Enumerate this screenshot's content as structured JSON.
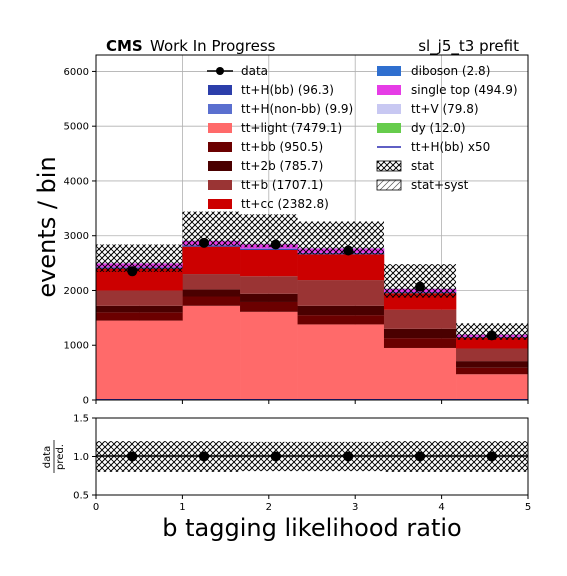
{
  "header": {
    "cms": "CMS",
    "wip": "Work In Progress",
    "region": "sl_j5_t3 prefit"
  },
  "colors": {
    "ttH_bb": "#2c3eaa",
    "ttH_nonbb": "#5a6fcf",
    "tt_light": "#ff6a6a",
    "tt_bb": "#6b0000",
    "tt_2b": "#4a0000",
    "tt_b": "#9a3434",
    "tt_cc": "#cc0000",
    "diboson": "#2f6fcf",
    "single_top": "#e63ce6",
    "ttV": "#c8c8f2",
    "dy": "#66cc4c",
    "ttH_x50_line": "#2a2ab0"
  },
  "chart_data": [
    {
      "type": "bar",
      "stacked": true,
      "title": "",
      "xlabel": "",
      "ylabel": "events / bin",
      "bin_edges": [
        0,
        0.5,
        1.0,
        1.667,
        2.333,
        3.333,
        4.167,
        5.0
      ],
      "ylim": [
        0,
        6300
      ],
      "yticks": [
        "0",
        "1000",
        "2000",
        "3000",
        "4000",
        "5000",
        "6000"
      ],
      "grid": true,
      "legend_position": "top-center",
      "series": [
        {
          "name": "tt+light (7479.1)",
          "color_key": "tt_light",
          "values": [
            1450,
            1450,
            1720,
            1610,
            1380,
            950,
            470
          ]
        },
        {
          "name": "tt+bb (950.5)",
          "color_key": "tt_bb",
          "values": [
            150,
            150,
            170,
            180,
            170,
            180,
            120
          ]
        },
        {
          "name": "tt+2b (785.7)",
          "color_key": "tt_2b",
          "values": [
            120,
            120,
            130,
            150,
            170,
            170,
            120
          ]
        },
        {
          "name": "tt+b (1707.1)",
          "color_key": "tt_b",
          "values": [
            280,
            280,
            280,
            320,
            470,
            350,
            230
          ]
        },
        {
          "name": "tt+cc (2382.8)",
          "color_key": "tt_cc",
          "values": [
            400,
            400,
            500,
            480,
            470,
            300,
            200
          ]
        },
        {
          "name": "tt+H(bb) (96.3)",
          "color_key": "ttH_bb",
          "values": [
            20,
            20,
            22,
            22,
            22,
            18,
            12
          ]
        },
        {
          "name": "tt+H(non-bb) (9.9)",
          "color_key": "ttH_nonbb",
          "values": [
            3,
            3,
            3,
            3,
            3,
            2,
            1
          ]
        },
        {
          "name": "diboson (2.8)",
          "color_key": "diboson",
          "values": [
            1,
            1,
            1,
            1,
            1,
            1,
            1
          ]
        },
        {
          "name": "single top (494.9)",
          "color_key": "single_top",
          "values": [
            70,
            70,
            80,
            80,
            80,
            60,
            40
          ]
        },
        {
          "name": "tt+V (79.8)",
          "color_key": "ttV",
          "values": [
            12,
            12,
            14,
            14,
            14,
            10,
            7
          ]
        },
        {
          "name": "dy (12.0)",
          "color_key": "dy",
          "values": [
            2,
            2,
            2,
            2,
            2,
            2,
            1
          ]
        }
      ],
      "signal_line": {
        "name": "tt+H(bb) x50",
        "color_key": "ttH_x50_line",
        "values": [
          5,
          5,
          5,
          5,
          5,
          5,
          5
        ]
      },
      "data": {
        "name": "data",
        "x": [
          0.42,
          1.25,
          2.08,
          2.92,
          3.75,
          4.58
        ],
        "y": [
          2350,
          2870,
          2840,
          2730,
          2070,
          1180
        ]
      },
      "uncertainty": [
        {
          "name": "stat",
          "up": [
            2840,
            2840,
            3440,
            3390,
            3260,
            2480,
            1400
          ],
          "down": [
            2340,
            2340,
            2820,
            2790,
            2660,
            1870,
            1100
          ]
        },
        {
          "name": "stat+syst",
          "up": [
            2840,
            2840,
            3440,
            3390,
            3260,
            2480,
            1400
          ],
          "down": [
            2340,
            2340,
            2820,
            2790,
            2660,
            1870,
            1100
          ]
        }
      ]
    },
    {
      "type": "scatter",
      "xlabel": "b tagging likelihood ratio",
      "ylabel": "data / pred.",
      "ylabel_lines": [
        "data",
        "pred."
      ],
      "xlim": [
        0,
        5
      ],
      "ylim": [
        0.5,
        1.5
      ],
      "xticks": [
        "0",
        "1",
        "2",
        "3",
        "4",
        "5"
      ],
      "yticks": [
        "0.5",
        "1.0",
        "1.5"
      ],
      "band_edges": [
        0,
        1.0,
        1.667,
        2.333,
        3.333,
        4.167,
        5.0
      ],
      "band_up": [
        1.2,
        1.2,
        1.19,
        1.19,
        1.2,
        1.2
      ],
      "band_down": [
        0.8,
        0.8,
        0.81,
        0.81,
        0.8,
        0.8
      ],
      "x": [
        0.42,
        1.25,
        2.08,
        2.92,
        3.75,
        4.58
      ],
      "y": [
        1.0,
        1.0,
        1.0,
        1.0,
        1.0,
        1.0
      ]
    }
  ]
}
